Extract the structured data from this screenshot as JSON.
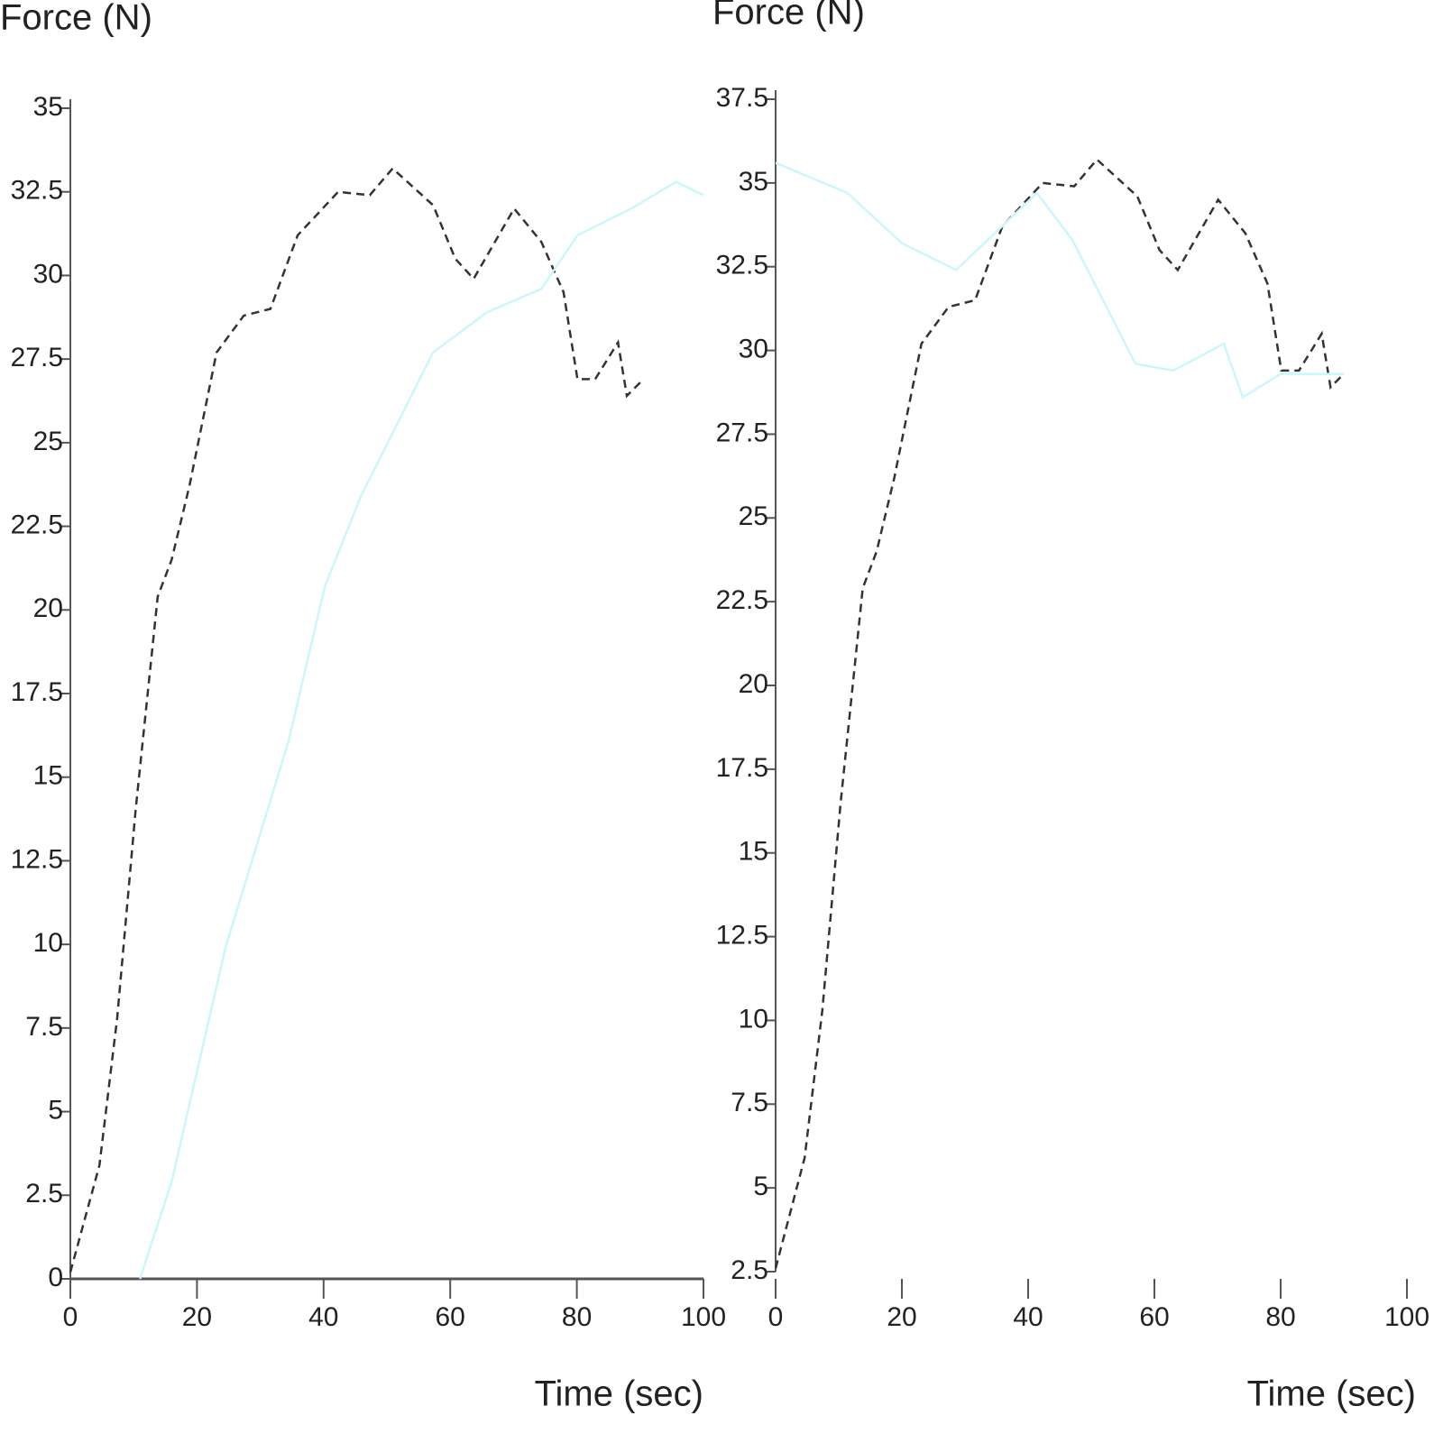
{
  "chart_data": [
    {
      "type": "line",
      "y_label": "Force (N)",
      "x_label": "Time (sec)",
      "xlim": [
        0,
        100
      ],
      "xticks": [
        0,
        20,
        40,
        60,
        80,
        100
      ],
      "ylim": [
        0,
        35
      ],
      "yticks": [
        0,
        2.5,
        5,
        7.5,
        10,
        12.5,
        15,
        17.5,
        20,
        22.5,
        25,
        27.5,
        30,
        32.5,
        35
      ],
      "series": [
        {
          "color": "#333333",
          "line_style": "dashed",
          "x": [
            0,
            4.6,
            7.4,
            10.3,
            13.8,
            16,
            18.8,
            23.1,
            27.4,
            31.6,
            35.9,
            42.3,
            47.3,
            50.9,
            57.3,
            60.8,
            63.7,
            70.1,
            74.4,
            77.9,
            80.1,
            82.9,
            86.5,
            87.9,
            90
          ],
          "values": [
            0.2,
            3.4,
            7.8,
            14,
            20.4,
            21.5,
            23.7,
            27.7,
            28.8,
            29,
            31.2,
            32.5,
            32.4,
            33.2,
            32.1,
            30.5,
            29.9,
            32,
            31,
            29.5,
            26.9,
            26.9,
            28,
            26.4,
            26.8
          ]
        },
        {
          "color": "#ccf7fa",
          "line_style": "solid",
          "x": [
            11,
            16,
            24.5,
            34.5,
            40.2,
            45.9,
            57.3,
            65.8,
            74.4,
            80.1,
            88.6,
            95.7,
            100
          ],
          "values": [
            0,
            2.9,
            9.9,
            16.1,
            20.7,
            23.4,
            27.7,
            28.9,
            29.6,
            31.2,
            32,
            32.8,
            32.4
          ]
        }
      ]
    },
    {
      "type": "line",
      "y_label": "Force (N)",
      "x_label": "Time (sec)",
      "xlim": [
        0,
        100
      ],
      "xticks": [
        0,
        20,
        40,
        60,
        80,
        100
      ],
      "ylim": [
        2.5,
        37.5
      ],
      "yticks": [
        2.5,
        5,
        7.5,
        10,
        12.5,
        15,
        17.5,
        20,
        22.5,
        25,
        27.5,
        30,
        32.5,
        35,
        37.5
      ],
      "series": [
        {
          "color": "#333333",
          "line_style": "dashed",
          "x": [
            0,
            4.6,
            7.4,
            10.3,
            13.8,
            16,
            18.8,
            23.1,
            27.4,
            31.6,
            35.9,
            42.3,
            47.3,
            50.9,
            57.3,
            60.8,
            63.7,
            70.1,
            74.4,
            77.9,
            80.1,
            82.9,
            86.5,
            87.9,
            90
          ],
          "values": [
            2.6,
            5.9,
            10.3,
            16.5,
            22.9,
            24,
            26.2,
            30.2,
            31.3,
            31.5,
            33.7,
            35,
            34.9,
            35.7,
            34.6,
            33,
            32.4,
            34.5,
            33.5,
            32,
            29.4,
            29.4,
            30.5,
            28.9,
            29.3
          ]
        },
        {
          "color": "#ccf7fa",
          "line_style": "solid",
          "x": [
            0,
            11.4,
            20,
            28.6,
            41.4,
            47,
            57,
            63,
            71,
            74,
            80,
            90
          ],
          "values": [
            35.6,
            34.7,
            33.2,
            32.4,
            34.7,
            33.3,
            29.6,
            29.4,
            30.2,
            28.6,
            29.3,
            29.3
          ]
        }
      ]
    }
  ]
}
